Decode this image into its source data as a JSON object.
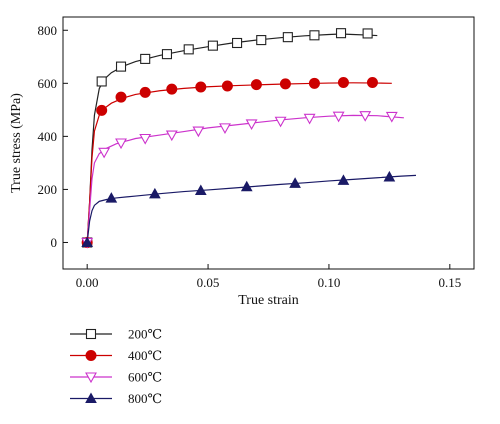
{
  "chart_data": {
    "type": "line",
    "xlabel": "True strain",
    "ylabel": "True stress (MPa)",
    "xlim": [
      -0.01,
      0.16
    ],
    "ylim": [
      -100,
      850
    ],
    "xticks": [
      0.0,
      0.05,
      0.1,
      0.15
    ],
    "xtick_labels": [
      "0.00",
      "0.05",
      "0.10",
      "0.15"
    ],
    "yticks": [
      0,
      200,
      400,
      600,
      800
    ],
    "ytick_labels": [
      "0",
      "200",
      "400",
      "600",
      "800"
    ],
    "grid": false,
    "legend_position": "bottom-left, below axes",
    "series": [
      {
        "name": "200℃",
        "color": "#222222",
        "marker": "square-open",
        "curve": [
          [
            0,
            0
          ],
          [
            0.001,
            150
          ],
          [
            0.002,
            350
          ],
          [
            0.003,
            480
          ],
          [
            0.005,
            580
          ],
          [
            0.007,
            615
          ],
          [
            0.01,
            640
          ],
          [
            0.015,
            665
          ],
          [
            0.02,
            682
          ],
          [
            0.03,
            705
          ],
          [
            0.04,
            723
          ],
          [
            0.05,
            738
          ],
          [
            0.06,
            752
          ],
          [
            0.07,
            763
          ],
          [
            0.08,
            772
          ],
          [
            0.09,
            779
          ],
          [
            0.1,
            784
          ],
          [
            0.105,
            786
          ],
          [
            0.11,
            784
          ],
          [
            0.116,
            782
          ],
          [
            0.12,
            780
          ]
        ],
        "markers": [
          [
            0.0,
            0
          ],
          [
            0.006,
            607
          ],
          [
            0.014,
            663
          ],
          [
            0.024,
            692
          ],
          [
            0.033,
            710
          ],
          [
            0.042,
            728
          ],
          [
            0.052,
            742
          ],
          [
            0.062,
            752
          ],
          [
            0.072,
            763
          ],
          [
            0.083,
            774
          ],
          [
            0.094,
            781
          ],
          [
            0.105,
            789
          ],
          [
            0.116,
            788
          ]
        ]
      },
      {
        "name": "400℃",
        "color": "#cc0000",
        "marker": "circle-filled",
        "curve": [
          [
            0,
            0
          ],
          [
            0.001,
            150
          ],
          [
            0.002,
            320
          ],
          [
            0.003,
            420
          ],
          [
            0.005,
            480
          ],
          [
            0.007,
            505
          ],
          [
            0.01,
            525
          ],
          [
            0.015,
            545
          ],
          [
            0.02,
            558
          ],
          [
            0.03,
            572
          ],
          [
            0.04,
            581
          ],
          [
            0.05,
            587
          ],
          [
            0.06,
            591
          ],
          [
            0.07,
            594
          ],
          [
            0.08,
            597
          ],
          [
            0.09,
            599
          ],
          [
            0.1,
            601
          ],
          [
            0.11,
            602
          ],
          [
            0.12,
            601
          ],
          [
            0.126,
            600
          ]
        ],
        "markers": [
          [
            0.0,
            0
          ],
          [
            0.006,
            498
          ],
          [
            0.014,
            548
          ],
          [
            0.024,
            566
          ],
          [
            0.035,
            578
          ],
          [
            0.047,
            586
          ],
          [
            0.058,
            590
          ],
          [
            0.07,
            595
          ],
          [
            0.082,
            598
          ],
          [
            0.094,
            600
          ],
          [
            0.106,
            603
          ],
          [
            0.118,
            603
          ]
        ]
      },
      {
        "name": "600℃",
        "color": "#cc33cc",
        "marker": "triangle-down-open",
        "curve": [
          [
            0,
            0
          ],
          [
            0.001,
            120
          ],
          [
            0.002,
            240
          ],
          [
            0.003,
            300
          ],
          [
            0.005,
            335
          ],
          [
            0.008,
            355
          ],
          [
            0.012,
            372
          ],
          [
            0.02,
            392
          ],
          [
            0.03,
            405
          ],
          [
            0.04,
            418
          ],
          [
            0.05,
            432
          ],
          [
            0.06,
            442
          ],
          [
            0.07,
            452
          ],
          [
            0.08,
            462
          ],
          [
            0.09,
            470
          ],
          [
            0.1,
            476
          ],
          [
            0.11,
            479
          ],
          [
            0.12,
            478
          ],
          [
            0.131,
            470
          ]
        ],
        "markers": [
          [
            0.0,
            0
          ],
          [
            0.007,
            340
          ],
          [
            0.014,
            375
          ],
          [
            0.024,
            392
          ],
          [
            0.035,
            405
          ],
          [
            0.046,
            420
          ],
          [
            0.057,
            432
          ],
          [
            0.068,
            447
          ],
          [
            0.08,
            457
          ],
          [
            0.092,
            468
          ],
          [
            0.104,
            476
          ],
          [
            0.115,
            478
          ],
          [
            0.126,
            475
          ]
        ]
      },
      {
        "name": "800℃",
        "color": "#1a1a66",
        "marker": "triangle-up-filled",
        "curve": [
          [
            0,
            0
          ],
          [
            0.001,
            80
          ],
          [
            0.002,
            120
          ],
          [
            0.003,
            140
          ],
          [
            0.005,
            155
          ],
          [
            0.008,
            162
          ],
          [
            0.012,
            168
          ],
          [
            0.02,
            175
          ],
          [
            0.03,
            184
          ],
          [
            0.04,
            192
          ],
          [
            0.05,
            198
          ],
          [
            0.06,
            205
          ],
          [
            0.07,
            212
          ],
          [
            0.08,
            219
          ],
          [
            0.09,
            225
          ],
          [
            0.1,
            232
          ],
          [
            0.11,
            238
          ],
          [
            0.12,
            244
          ],
          [
            0.13,
            250
          ],
          [
            0.136,
            253
          ]
        ],
        "markers": [
          [
            0.0,
            0
          ],
          [
            0.01,
            167
          ],
          [
            0.028,
            183
          ],
          [
            0.047,
            196
          ],
          [
            0.066,
            210
          ],
          [
            0.086,
            223
          ],
          [
            0.106,
            234
          ],
          [
            0.125,
            247
          ]
        ]
      }
    ]
  }
}
